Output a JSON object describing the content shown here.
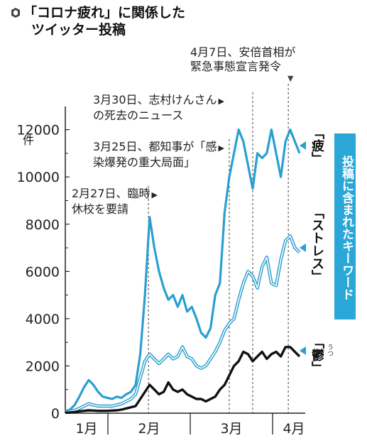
{
  "title": {
    "line1": "「コロナ疲れ」に関係した",
    "line2": "ツイッター投稿",
    "icon": "news-bullet-icon"
  },
  "y_unit": "件",
  "annotations": [
    {
      "line1": "4月7日、安倍首相が",
      "line2": "緊急事態宣言発令",
      "arrow": "▼"
    },
    {
      "line1": "3月30日、志村けんさん",
      "line2": "の死去のニュース",
      "arrow": "▶"
    },
    {
      "line1": "3月25日、都知事が「感",
      "line2": "染爆発の重大局面」",
      "arrow": "▶"
    },
    {
      "line1": "2月27日、臨時",
      "line2": "休校を要請",
      "arrow": "▶"
    }
  ],
  "keywords": {
    "fatigue": "「疲」",
    "stress": "「ストレス」",
    "depression": "「鬱」",
    "depression_ruby": "うつ",
    "legend": "投稿に含まれたキーワード"
  },
  "colors": {
    "fatigue": "#2a9fd0",
    "stress": "#2a9fd0",
    "depression": "#111111",
    "legend_bg": "#2aa6d7"
  },
  "chart_data": {
    "type": "line",
    "x_labels": [
      "1月",
      "2月",
      "3月",
      "4月"
    ],
    "y_ticks": [
      0,
      2000,
      4000,
      6000,
      8000,
      10000,
      12000
    ],
    "ylim": [
      0,
      12500
    ],
    "x": [
      "1/10",
      "1/15",
      "1/20",
      "1/23",
      "1/25",
      "1/27",
      "1/28",
      "1/30",
      "2/1",
      "2/4",
      "2/8",
      "2/12",
      "2/16",
      "2/20",
      "2/22",
      "2/24",
      "2/25",
      "2/26",
      "2/27",
      "2/28",
      "2/29",
      "3/1",
      "3/3",
      "3/5",
      "3/7",
      "3/9",
      "3/11",
      "3/13",
      "3/15",
      "3/17",
      "3/19",
      "3/21",
      "3/22",
      "3/23",
      "3/24",
      "3/25",
      "3/26",
      "3/27",
      "3/28",
      "3/29",
      "3/30",
      "3/31",
      "4/1",
      "4/2",
      "4/3",
      "4/4",
      "4/5",
      "4/6",
      "4/7",
      "4/8",
      "4/9"
    ],
    "series": [
      {
        "name": "「疲」",
        "values": [
          80,
          150,
          350,
          700,
          1100,
          1400,
          1200,
          900,
          700,
          650,
          600,
          700,
          650,
          800,
          900,
          1200,
          2500,
          5000,
          8300,
          7000,
          6000,
          5300,
          4800,
          5000,
          4500,
          5000,
          4300,
          4500,
          4000,
          3400,
          3200,
          3600,
          5000,
          5500,
          8500,
          10000,
          11000,
          12000,
          11500,
          10500,
          9500,
          11000,
          10800,
          11000,
          12000,
          11000,
          10000,
          11500,
          12000,
          11500,
          11000
        ]
      },
      {
        "name": "「ストレス」",
        "values": [
          50,
          80,
          120,
          200,
          300,
          400,
          350,
          300,
          300,
          300,
          300,
          350,
          400,
          500,
          600,
          800,
          1500,
          2200,
          2500,
          2300,
          2100,
          2300,
          2500,
          2300,
          2400,
          2800,
          2400,
          2300,
          2000,
          1900,
          2000,
          2300,
          2600,
          3000,
          3500,
          3800,
          4000,
          4800,
          5500,
          6000,
          5800,
          5300,
          6200,
          6600,
          5500,
          5400,
          6500,
          7300,
          7500,
          7000,
          6800
        ]
      },
      {
        "name": "「鬱」",
        "values": [
          20,
          30,
          50,
          80,
          100,
          120,
          110,
          100,
          100,
          100,
          110,
          120,
          150,
          200,
          250,
          300,
          600,
          900,
          1200,
          1000,
          800,
          900,
          1300,
          1000,
          900,
          1000,
          800,
          700,
          600,
          600,
          500,
          600,
          700,
          1000,
          1200,
          1600,
          2000,
          2200,
          2600,
          2500,
          2200,
          2400,
          2600,
          2300,
          2500,
          2600,
          2400,
          2800,
          2800,
          2600,
          2400
        ]
      }
    ]
  }
}
